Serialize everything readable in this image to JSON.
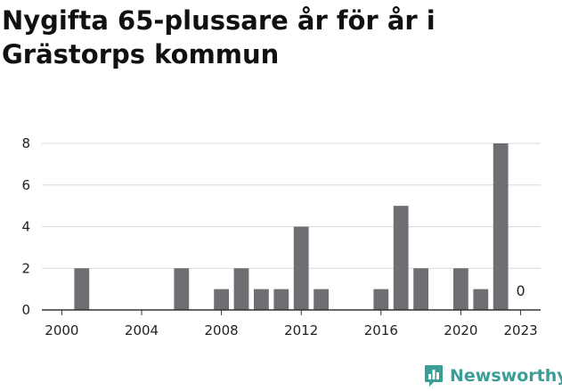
{
  "title": "Nygifta 65-plussare år för år i Grästorps kommun",
  "brand": {
    "name": "Newsworthy",
    "icon": "newsworthy-logo-icon",
    "color": "#3a9e97"
  },
  "chart_data": {
    "type": "bar",
    "title": "Nygifta 65-plussare år för år i Grästorps kommun",
    "xlabel": "",
    "ylabel": "",
    "x": [
      2000,
      2001,
      2002,
      2003,
      2004,
      2005,
      2006,
      2007,
      2008,
      2009,
      2010,
      2011,
      2012,
      2013,
      2014,
      2015,
      2016,
      2017,
      2018,
      2019,
      2020,
      2021,
      2022,
      2023
    ],
    "values": [
      0,
      2,
      0,
      0,
      0,
      0,
      2,
      0,
      1,
      2,
      1,
      1,
      4,
      1,
      0,
      0,
      1,
      5,
      2,
      0,
      2,
      1,
      8,
      0
    ],
    "x_ticks": [
      "2000",
      "2004",
      "2008",
      "2012",
      "2016",
      "2020",
      "2023"
    ],
    "y_ticks": [
      0,
      2,
      4,
      6,
      8
    ],
    "ylim": [
      0,
      8
    ],
    "xlim": [
      1999,
      2024
    ],
    "data_labels": [
      {
        "x": 2023,
        "text": "0"
      }
    ],
    "grid": true,
    "bar_color": "#6f6e73"
  }
}
